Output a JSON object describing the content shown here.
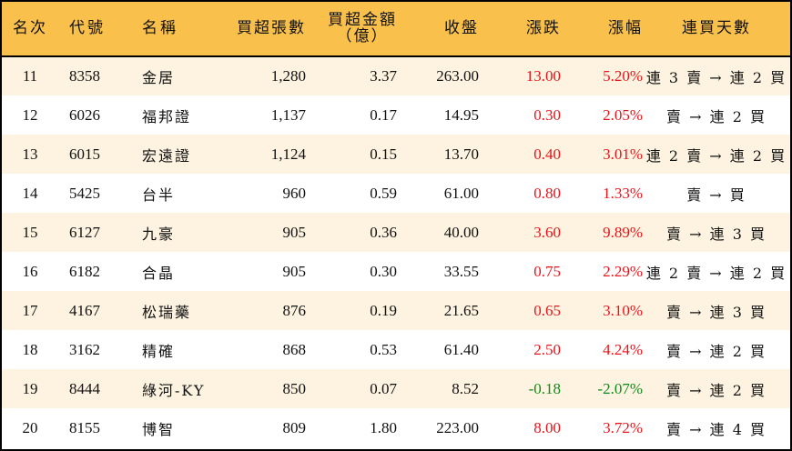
{
  "table": {
    "headers": {
      "rank": "名次",
      "code": "代號",
      "name": "名稱",
      "net_buy_lots": "買超張數",
      "net_buy_amount_line1": "買超金額",
      "net_buy_amount_line2": "（億）",
      "close": "收盤",
      "change": "漲跌",
      "change_pct": "漲幅",
      "streak": "連買天數"
    },
    "colors": {
      "header_bg": "#f9c04c",
      "odd_row_bg": "#fdf3e0",
      "even_row_bg": "#ffffff",
      "up": "#e8141b",
      "down": "#0f8a1a"
    },
    "rows": [
      {
        "rank": "11",
        "code": "8358",
        "name": "金居",
        "lots": "1,280",
        "amount": "3.37",
        "close": "263.00",
        "change": "13.00",
        "pct": "5.20%",
        "streak": "連 3 賣 → 連 2 買",
        "dir": "up"
      },
      {
        "rank": "12",
        "code": "6026",
        "name": "福邦證",
        "lots": "1,137",
        "amount": "0.17",
        "close": "14.95",
        "change": "0.30",
        "pct": "2.05%",
        "streak": "賣 → 連 2 買",
        "dir": "up"
      },
      {
        "rank": "13",
        "code": "6015",
        "name": "宏遠證",
        "lots": "1,124",
        "amount": "0.15",
        "close": "13.70",
        "change": "0.40",
        "pct": "3.01%",
        "streak": "連 2 賣 → 連 2 買",
        "dir": "up"
      },
      {
        "rank": "14",
        "code": "5425",
        "name": "台半",
        "lots": "960",
        "amount": "0.59",
        "close": "61.00",
        "change": "0.80",
        "pct": "1.33%",
        "streak": "賣 → 買",
        "dir": "up"
      },
      {
        "rank": "15",
        "code": "6127",
        "name": "九豪",
        "lots": "905",
        "amount": "0.36",
        "close": "40.00",
        "change": "3.60",
        "pct": "9.89%",
        "streak": "賣 → 連 3 買",
        "dir": "up"
      },
      {
        "rank": "16",
        "code": "6182",
        "name": "合晶",
        "lots": "905",
        "amount": "0.30",
        "close": "33.55",
        "change": "0.75",
        "pct": "2.29%",
        "streak": "連 2 賣 → 連 2 買",
        "dir": "up"
      },
      {
        "rank": "17",
        "code": "4167",
        "name": "松瑞藥",
        "lots": "876",
        "amount": "0.19",
        "close": "21.65",
        "change": "0.65",
        "pct": "3.10%",
        "streak": "賣 → 連 3 買",
        "dir": "up"
      },
      {
        "rank": "18",
        "code": "3162",
        "name": "精確",
        "lots": "868",
        "amount": "0.53",
        "close": "61.40",
        "change": "2.50",
        "pct": "4.24%",
        "streak": "賣 → 連 2 買",
        "dir": "up"
      },
      {
        "rank": "19",
        "code": "8444",
        "name": "綠河-KY",
        "lots": "850",
        "amount": "0.07",
        "close": "8.52",
        "change": "-0.18",
        "pct": "-2.07%",
        "streak": "賣 → 連 2 買",
        "dir": "down"
      },
      {
        "rank": "20",
        "code": "8155",
        "name": "博智",
        "lots": "809",
        "amount": "1.80",
        "close": "223.00",
        "change": "8.00",
        "pct": "3.72%",
        "streak": "賣 → 連 4 買",
        "dir": "up"
      }
    ]
  }
}
